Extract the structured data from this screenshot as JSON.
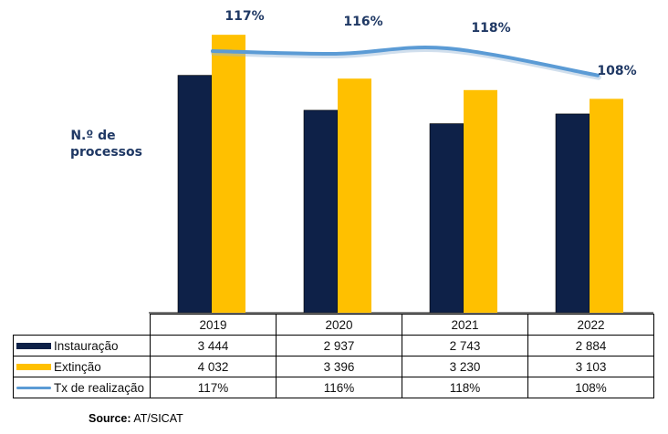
{
  "chart_data": {
    "type": "bar",
    "categories": [
      "2019",
      "2020",
      "2021",
      "2022"
    ],
    "series": [
      {
        "name": "Instauração",
        "type": "bar",
        "values": [
          3444,
          2937,
          2743,
          2884
        ],
        "color": "#0e2148"
      },
      {
        "name": "Extinção",
        "type": "bar",
        "values": [
          4032,
          3396,
          3230,
          3103
        ],
        "color": "#ffc000"
      },
      {
        "name": "Tx de realização",
        "type": "line",
        "values": [
          117,
          116,
          118,
          108
        ],
        "color": "#5b9bd5"
      }
    ],
    "ylabel": [
      "N.º de",
      "processos"
    ],
    "table": {
      "header": [
        "2019",
        "2020",
        "2021",
        "2022"
      ],
      "rows": [
        {
          "label": "Instauração",
          "cells": [
            "3 444",
            "2 937",
            "2 743",
            "2 884"
          ]
        },
        {
          "label": "Extinção",
          "cells": [
            "4 032",
            "3 396",
            "3 230",
            "3 103"
          ]
        },
        {
          "label": "Tx de realização",
          "cells": [
            "117%",
            "116%",
            "118%",
            "108%"
          ]
        }
      ]
    },
    "line_labels": [
      "117%",
      "116%",
      "118%",
      "108%"
    ]
  },
  "source": {
    "label": "Source:",
    "text": "AT/SICAT"
  }
}
